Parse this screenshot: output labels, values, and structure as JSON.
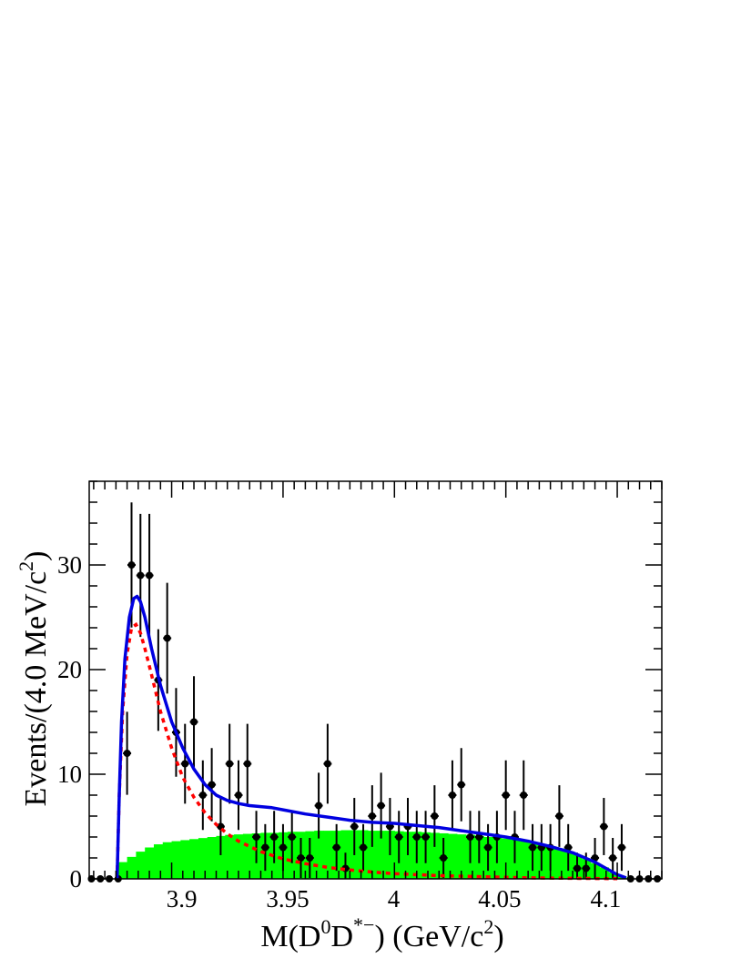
{
  "chart_data": {
    "type": "scatter",
    "xlim": [
      3.863,
      4.12
    ],
    "ylim": [
      0,
      38
    ],
    "x_ticks": [
      "3.9",
      "3.95",
      "4",
      "4.05",
      "4.1"
    ],
    "y_ticks": [
      "0",
      "10",
      "20",
      "30"
    ],
    "xlabel": {
      "base": "M(D",
      "sup1": "0",
      "mid": "D",
      "sup2": "*−",
      "unit": ") (GeV/c",
      "sup3": "2",
      "end": ")"
    },
    "ylabel": {
      "base": "Events/(4.0 MeV/c",
      "sup": "2",
      "end": ")"
    },
    "data_points": {
      "x": [
        3.864,
        3.868,
        3.872,
        3.876,
        3.88,
        3.882,
        3.886,
        3.89,
        3.894,
        3.898,
        3.902,
        3.906,
        3.91,
        3.914,
        3.918,
        3.922,
        3.926,
        3.93,
        3.934,
        3.938,
        3.942,
        3.946,
        3.95,
        3.954,
        3.958,
        3.962,
        3.966,
        3.97,
        3.974,
        3.978,
        3.982,
        3.986,
        3.99,
        3.994,
        3.998,
        4.002,
        4.006,
        4.01,
        4.014,
        4.018,
        4.022,
        4.026,
        4.03,
        4.034,
        4.038,
        4.042,
        4.046,
        4.05,
        4.054,
        4.058,
        4.062,
        4.066,
        4.07,
        4.074,
        4.078,
        4.082,
        4.086,
        4.09,
        4.094,
        4.098,
        4.102,
        4.106,
        4.11,
        4.114,
        4.118
      ],
      "y": [
        0,
        0,
        0,
        0,
        12,
        30,
        29,
        29,
        19,
        23,
        14,
        11,
        15,
        8,
        9,
        5,
        11,
        8,
        11,
        4,
        3,
        4,
        3,
        4,
        2,
        2,
        7,
        11,
        3,
        1,
        5,
        3,
        6,
        7,
        5,
        4,
        5,
        4,
        4,
        6,
        2,
        8,
        9,
        4,
        4,
        3,
        4,
        8,
        4,
        8,
        3,
        3,
        3,
        6,
        3,
        1,
        1,
        2,
        5,
        2,
        3,
        0,
        0,
        0,
        0
      ]
    },
    "total_fit": {
      "x": [
        3.8755,
        3.8765,
        3.8775,
        3.879,
        3.881,
        3.883,
        3.8845,
        3.886,
        3.888,
        3.891,
        3.895,
        3.9,
        3.905,
        3.91,
        3.915,
        3.92,
        3.925,
        3.93,
        3.935,
        3.94,
        3.945,
        3.95,
        3.96,
        3.97,
        3.98,
        3.99,
        4.0,
        4.01,
        4.02,
        4.03,
        4.04,
        4.05,
        4.06,
        4.07,
        4.08,
        4.09,
        4.095,
        4.1,
        4.104
      ],
      "y": [
        0,
        8,
        15,
        21,
        25,
        26.8,
        27,
        26.5,
        25,
        22,
        18.5,
        15,
        12.5,
        10.5,
        9,
        8,
        7.5,
        7.2,
        7,
        6.9,
        6.8,
        6.6,
        6.2,
        5.9,
        5.6,
        5.4,
        5.3,
        5.1,
        4.9,
        4.6,
        4.3,
        4.0,
        3.6,
        3.1,
        2.5,
        1.6,
        1.0,
        0.4,
        0.1
      ]
    },
    "signal_fit": {
      "x": [
        3.8755,
        3.8765,
        3.878,
        3.88,
        3.882,
        3.884,
        3.886,
        3.888,
        3.891,
        3.895,
        3.9,
        3.905,
        3.91,
        3.915,
        3.92,
        3.925,
        3.93,
        3.94,
        3.95,
        3.96,
        3.97,
        3.98,
        3.99,
        4.0,
        4.02,
        4.04,
        4.06,
        4.08,
        4.1
      ],
      "y": [
        0,
        8,
        16,
        21.5,
        24,
        24.3,
        23.5,
        22,
        19.5,
        16,
        12.5,
        9.7,
        7.8,
        6.3,
        5.2,
        4.3,
        3.6,
        2.6,
        1.9,
        1.45,
        1.1,
        0.85,
        0.65,
        0.5,
        0.3,
        0.2,
        0.1,
        0.05,
        0.02
      ]
    },
    "background": {
      "x": [
        3.878,
        3.882,
        3.886,
        3.89,
        3.894,
        3.898,
        3.902,
        3.906,
        3.91,
        3.914,
        3.918,
        3.922,
        3.926,
        3.93,
        3.934,
        3.938,
        3.942,
        3.946,
        3.95,
        3.954,
        3.958,
        3.962,
        3.966,
        3.97,
        3.974,
        3.978,
        3.982,
        3.986,
        3.99,
        3.994,
        3.998,
        4.002,
        4.006,
        4.01,
        4.014,
        4.018,
        4.022,
        4.026,
        4.03,
        4.034,
        4.038,
        4.042,
        4.046,
        4.05,
        4.054,
        4.058,
        4.062,
        4.066,
        4.07,
        4.074,
        4.078,
        4.082,
        4.086,
        4.09,
        4.094,
        4.098,
        4.102
      ],
      "y": [
        1.6,
        2.1,
        2.6,
        3.0,
        3.3,
        3.5,
        3.6,
        3.7,
        3.8,
        3.9,
        4.0,
        4.1,
        4.2,
        4.25,
        4.3,
        4.35,
        4.4,
        4.4,
        4.45,
        4.5,
        4.5,
        4.55,
        4.6,
        4.6,
        4.6,
        4.65,
        4.65,
        4.65,
        4.6,
        4.6,
        4.6,
        4.55,
        4.5,
        4.5,
        4.45,
        4.4,
        4.35,
        4.3,
        4.25,
        4.2,
        4.1,
        4.0,
        3.95,
        3.85,
        3.75,
        3.6,
        3.45,
        3.3,
        3.1,
        2.9,
        2.6,
        2.3,
        1.9,
        1.5,
        1.1,
        0.6,
        0.2
      ]
    },
    "colors": {
      "data": "#000000",
      "total_fit": "#0000e0",
      "signal_fit": "#ff0000",
      "background": "#00ff00"
    }
  }
}
